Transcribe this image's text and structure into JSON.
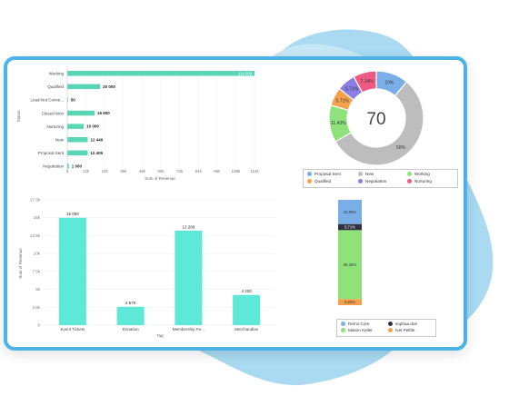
{
  "chart_data": [
    {
      "type": "bar",
      "orientation": "horizontal",
      "ylabel": "Status",
      "xlabel": "Sum of Revenue",
      "categories": [
        "Working",
        "Qualified",
        "Lead-Not Conve...",
        "Closed Won",
        "Nurturing",
        "New",
        "Proposal Sent",
        "Negotiation"
      ],
      "values": [
        114000,
        20000,
        50,
        16600,
        10000,
        12440,
        12405,
        1000
      ],
      "value_labels": [
        "114 000",
        "20 000",
        "50",
        "16 600",
        "10 000",
        "12 440",
        "12 405",
        "1 000"
      ],
      "xlim": [
        0,
        114000
      ],
      "xticks": [
        "0",
        "12k",
        "24k",
        "36k",
        "48k",
        "60k",
        "72k",
        "84k",
        "96k",
        "108k",
        "114k"
      ],
      "color": "#5ad6b4"
    },
    {
      "type": "pie",
      "donut": true,
      "center_label": "70",
      "labels": [
        "Proposal Sent",
        "New",
        "Working",
        "Qualified",
        "Negotiation",
        "Nurturing"
      ],
      "values": [
        10,
        50,
        11.43,
        5.71,
        5.71,
        7.14
      ],
      "value_labels": [
        "10%",
        "50%",
        "11.43%",
        "5.71%",
        "5.71%",
        "7.14%"
      ],
      "colors": [
        "#7aaee8",
        "#bdbdbd",
        "#8fe27a",
        "#f6a04d",
        "#8b7fe6",
        "#ee5a84"
      ],
      "legend": "bottom"
    },
    {
      "type": "bar",
      "orientation": "vertical",
      "ylabel": "Sum of Revenue",
      "xlabel": "Tag",
      "categories": [
        "Event Tickets",
        "Donation",
        "Membership Fe...",
        "Merchandise"
      ],
      "values": [
        15000,
        2570,
        13200,
        4220
      ],
      "value_labels": [
        "15 000",
        "2 570",
        "13 200",
        "4 220"
      ],
      "ylim": [
        0,
        17500
      ],
      "yticks": [
        "0",
        "2.5k",
        "5k",
        "7.5k",
        "10k",
        "12.5k",
        "15k",
        "17.5k"
      ],
      "color": "#5ee8d8"
    },
    {
      "type": "bar",
      "stacked": true,
      "series": [
        {
          "name": "Demo Core",
          "value": 23.08,
          "label": "23.08%",
          "color": "#7aaee8"
        },
        {
          "name": "sophaa.doe",
          "value": 5.71,
          "label": "5.71%",
          "color": "#2f3340"
        },
        {
          "name": "Mason Keller",
          "value": 65.38,
          "label": "65.38%",
          "color": "#8fe27a"
        },
        {
          "name": "Ivet Pelble",
          "value": 5.83,
          "label": "5.83%",
          "color": "#f6a04d"
        }
      ],
      "legend": "bottom"
    }
  ]
}
